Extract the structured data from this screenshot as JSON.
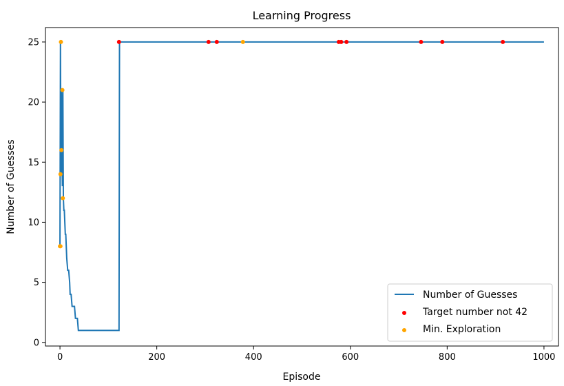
{
  "chart_data": {
    "type": "line",
    "title": "Learning Progress",
    "xlabel": "Episode",
    "ylabel": "Number of Guesses",
    "xlim": [
      -30,
      1030
    ],
    "ylim": [
      -0.3,
      26.2
    ],
    "xticks": [
      0,
      200,
      400,
      600,
      800,
      1000
    ],
    "yticks": [
      0,
      5,
      10,
      15,
      20,
      25
    ],
    "legend_position": "bottom-right",
    "series": [
      {
        "name": "Number of Guesses",
        "kind": "step-line",
        "color": "#1f77b4",
        "points": [
          [
            0,
            8
          ],
          [
            1,
            25
          ],
          [
            2,
            14
          ],
          [
            3,
            21
          ],
          [
            4,
            16
          ],
          [
            5,
            13
          ],
          [
            6,
            21
          ],
          [
            7,
            12
          ],
          [
            8,
            11
          ],
          [
            9,
            11
          ],
          [
            10,
            10
          ],
          [
            11,
            9
          ],
          [
            12,
            9
          ],
          [
            13,
            8
          ],
          [
            14,
            7
          ],
          [
            16,
            6
          ],
          [
            18,
            6
          ],
          [
            20,
            5
          ],
          [
            21,
            4
          ],
          [
            23,
            4
          ],
          [
            25,
            3
          ],
          [
            30,
            3
          ],
          [
            32,
            2
          ],
          [
            36,
            2
          ],
          [
            38,
            1
          ],
          [
            50,
            1
          ],
          [
            70,
            1
          ],
          [
            90,
            1
          ],
          [
            110,
            1
          ],
          [
            122,
            1
          ],
          [
            123,
            25
          ],
          [
            200,
            25
          ],
          [
            400,
            25
          ],
          [
            600,
            25
          ],
          [
            800,
            25
          ],
          [
            1000,
            25
          ]
        ]
      },
      {
        "name": "Target number not 42",
        "kind": "scatter",
        "color": "#ff0000",
        "points": [
          [
            122,
            25
          ],
          [
            307,
            25
          ],
          [
            324,
            25
          ],
          [
            576,
            25
          ],
          [
            581,
            25
          ],
          [
            592,
            25
          ],
          [
            746,
            25
          ],
          [
            790,
            25
          ],
          [
            915,
            25
          ]
        ]
      },
      {
        "name": "Min. Exploration",
        "kind": "scatter",
        "color": "#ffa500",
        "points": [
          [
            0,
            8
          ],
          [
            1,
            8
          ],
          [
            1,
            14
          ],
          [
            2,
            25
          ],
          [
            3,
            16
          ],
          [
            5,
            21
          ],
          [
            6,
            12
          ],
          [
            378,
            25
          ]
        ]
      }
    ]
  }
}
